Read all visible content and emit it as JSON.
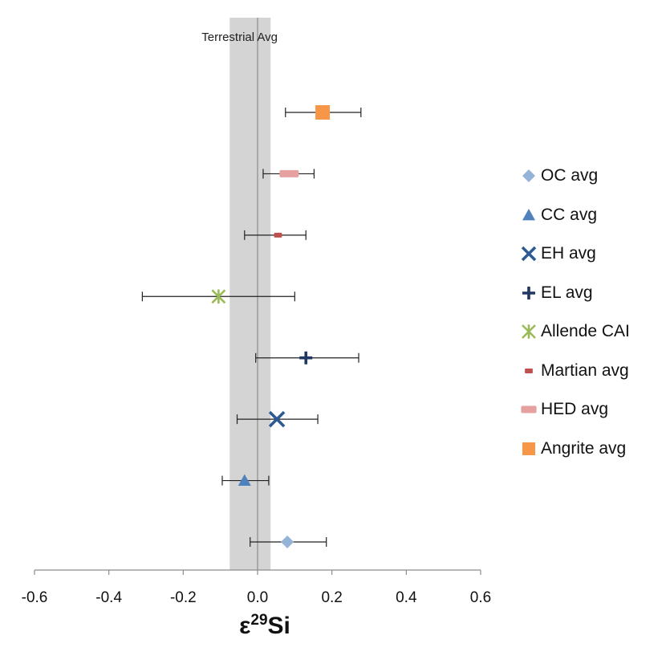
{
  "chart_data": {
    "type": "scatter",
    "title": "",
    "xlabel_eps": "ε",
    "xlabel_sup": "29",
    "xlabel_main": "Si",
    "ylabel": "",
    "xlim": [
      -0.6,
      0.6
    ],
    "xticks": [
      "-0.6",
      "-0.4",
      "-0.2",
      "0.0",
      "0.2",
      "0.4",
      "0.6"
    ],
    "reference": {
      "label": "Terrestrial Avg",
      "value": 0.0,
      "band": [
        -0.075,
        0.035
      ]
    },
    "series": [
      {
        "name": "OC avg",
        "value": 0.08,
        "err_low": -0.02,
        "err_high": 0.185,
        "marker": "diamond",
        "color": "#95b3d7"
      },
      {
        "name": "CC avg",
        "value": -0.035,
        "err_low": -0.095,
        "err_high": 0.03,
        "marker": "triangle",
        "color": "#4f81bd"
      },
      {
        "name": "EH avg",
        "value": 0.052,
        "err_low": -0.055,
        "err_high": 0.162,
        "marker": "x",
        "color": "#2e5a94"
      },
      {
        "name": "EL avg",
        "value": 0.13,
        "err_low": -0.005,
        "err_high": 0.272,
        "marker": "plus",
        "color": "#1f3864"
      },
      {
        "name": "Allende CAI",
        "value": -0.105,
        "err_low": -0.31,
        "err_high": 0.1,
        "marker": "asterisk",
        "color": "#9bbb59"
      },
      {
        "name": "Martian avg",
        "value": 0.055,
        "err_low": -0.035,
        "err_high": 0.13,
        "marker": "dash",
        "color": "#c0504d"
      },
      {
        "name": "HED avg",
        "value": 0.085,
        "err_low": 0.015,
        "err_high": 0.152,
        "marker": "bar",
        "color": "#e6a0a0"
      },
      {
        "name": "Angrite avg",
        "value": 0.175,
        "err_low": 0.075,
        "err_high": 0.278,
        "marker": "square",
        "color": "#f79646"
      }
    ],
    "legend_position": "right"
  }
}
